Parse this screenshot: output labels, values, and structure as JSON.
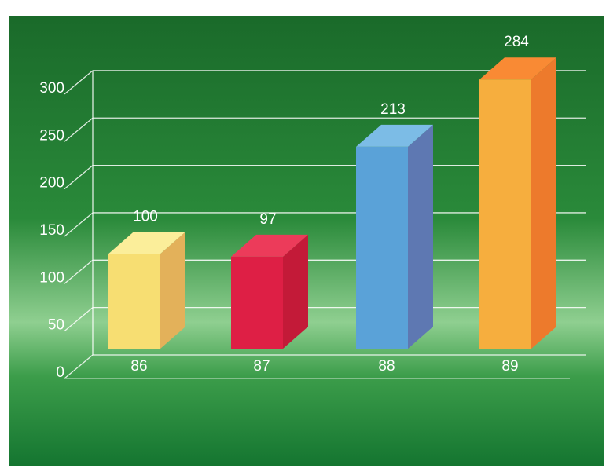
{
  "chart_data": {
    "type": "bar",
    "categories": [
      "86",
      "87",
      "88",
      "89"
    ],
    "values": [
      100,
      97,
      213,
      284
    ],
    "data_labels": [
      "100",
      "97",
      "213",
      "284"
    ],
    "ylim": [
      0,
      300
    ],
    "yticks": [
      "0",
      "50",
      "100",
      "150",
      "200",
      "250",
      "300"
    ],
    "grid": true,
    "style": "3d",
    "colors": [
      {
        "front": "#f7de72",
        "side": "#e3b15a",
        "top": "#fbee9a"
      },
      {
        "front": "#de1f45",
        "side": "#c31a38",
        "top": "#ec3b5a"
      },
      {
        "front": "#5aa2d8",
        "side": "#5e78b2",
        "top": "#7cbce6"
      },
      {
        "front": "#f6ae3e",
        "side": "#ed7a2c",
        "top": "#f98a34"
      }
    ],
    "background": {
      "top": "#1e6f2c",
      "mid": "#2a8c3c",
      "band": "#9ad29a",
      "bottom": "#157a31"
    }
  }
}
